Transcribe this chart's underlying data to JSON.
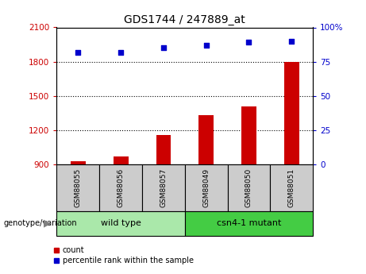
{
  "title": "GDS1744 / 247889_at",
  "samples": [
    "GSM88055",
    "GSM88056",
    "GSM88057",
    "GSM88049",
    "GSM88050",
    "GSM88051"
  ],
  "counts": [
    930,
    970,
    1160,
    1330,
    1410,
    1800
  ],
  "percentile_ranks": [
    82,
    82,
    85,
    87,
    89,
    90
  ],
  "ylim_left": [
    900,
    2100
  ],
  "ylim_right": [
    0,
    100
  ],
  "yticks_left": [
    900,
    1200,
    1500,
    1800,
    2100
  ],
  "yticks_right": [
    0,
    25,
    50,
    75,
    100
  ],
  "bar_color": "#cc0000",
  "dot_color": "#0000cc",
  "groups": [
    {
      "label": "wild type",
      "indices": [
        0,
        1,
        2
      ],
      "color": "#aae8aa"
    },
    {
      "label": "csn4-1 mutant",
      "indices": [
        3,
        4,
        5
      ],
      "color": "#44cc44"
    }
  ],
  "group_label": "genotype/variation",
  "legend_count_label": "count",
  "legend_pct_label": "percentile rank within the sample",
  "left_tick_color": "#cc0000",
  "right_tick_color": "#0000cc",
  "background_plot": "#ffffff",
  "background_sample_boxes": "#cccccc",
  "bar_width": 0.35
}
